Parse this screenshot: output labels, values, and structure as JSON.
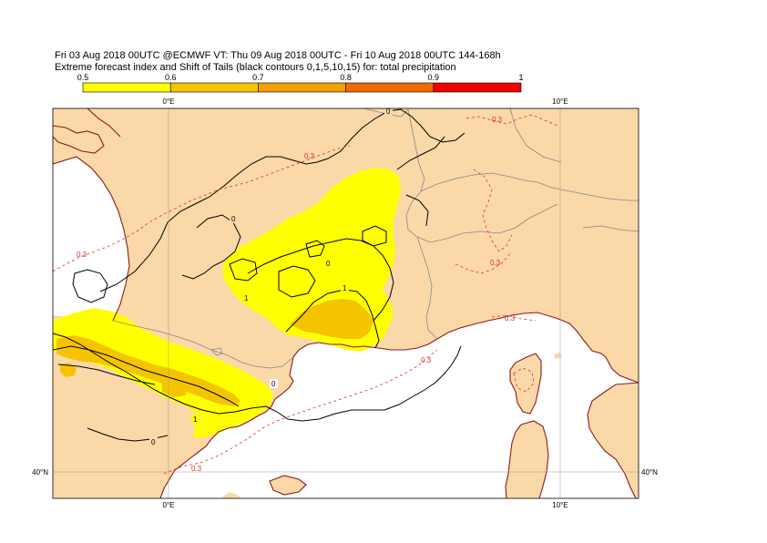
{
  "title_line1": "Fri 03 Aug 2018 00UTC @ECMWF VT: Thu 09 Aug 2018 00UTC - Fri 10 Aug 2018 00UTC  144-168h",
  "title_line2": "Extreme forecast index and Shift of Tails (black contours 0,1,5,10,15) for: total precipitation",
  "legend": {
    "ticks": [
      "0.5",
      "0.6",
      "0.7",
      "0.8",
      "0.9",
      "1"
    ],
    "colors": [
      "#ffff00",
      "#f5c400",
      "#f0a000",
      "#f06a00",
      "#f00000"
    ]
  },
  "axes": {
    "lon_labels": [
      "0°E",
      "10°E"
    ],
    "lat_labels": [
      "40°N"
    ]
  },
  "contour_labels": {
    "sot_0": "0",
    "sot_1": "1",
    "efi_03": "0.3"
  },
  "colors": {
    "land": "#fad8a8",
    "sea": "#ffffff",
    "efi_05": "#ffff00",
    "efi_06": "#f5c400",
    "sot_contour": "#000000",
    "efi_contour": "#e03030",
    "coast": "#8b1a1a",
    "border": "#888888"
  }
}
